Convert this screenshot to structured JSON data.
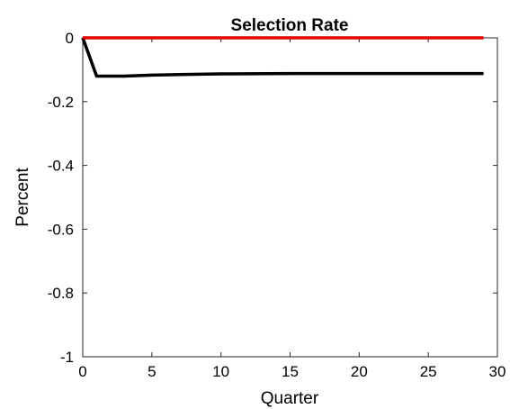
{
  "chart_data": {
    "type": "line",
    "title": "Selection Rate",
    "xlabel": "Quarter",
    "ylabel": "Percent",
    "xlim": [
      0,
      30
    ],
    "ylim": [
      -1,
      0
    ],
    "xticks": [
      0,
      5,
      10,
      15,
      20,
      25,
      30
    ],
    "yticks": [
      0,
      -0.2,
      -0.4,
      -0.6,
      -0.8,
      -1
    ],
    "grid": false,
    "series": [
      {
        "color": "#000000",
        "x": [
          0,
          1,
          2,
          3,
          5,
          7,
          10,
          15,
          20,
          25,
          29
        ],
        "y": [
          0,
          -0.12,
          -0.12,
          -0.12,
          -0.117,
          -0.115,
          -0.113,
          -0.112,
          -0.112,
          -0.112,
          -0.112
        ]
      },
      {
        "color": "#e00000",
        "x": [
          0,
          29
        ],
        "y": [
          0,
          0
        ]
      }
    ]
  }
}
